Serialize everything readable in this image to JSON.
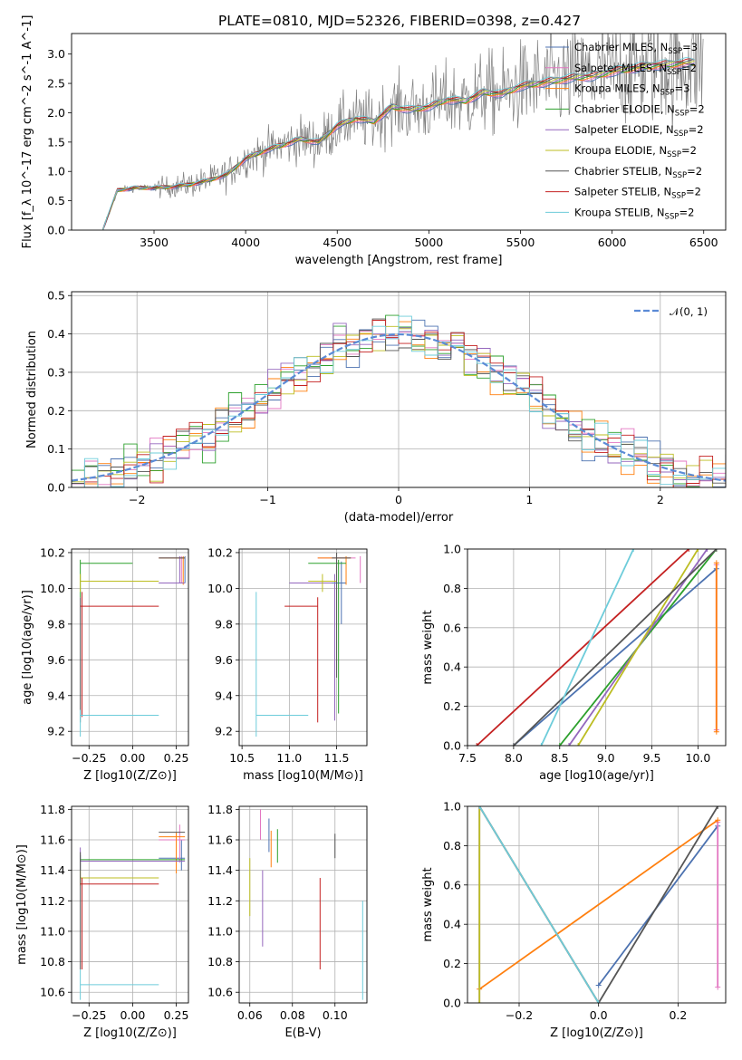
{
  "figure_title": "PLATE=0810, MJD=52326, FIBERID=0398, z=0.427",
  "colors": {
    "models": [
      "#4c72b0",
      "#e377c2",
      "#ff7f0e",
      "#2ca02c",
      "#9467bd",
      "#bcbd22",
      "#555555",
      "#c42121",
      "#6dccda"
    ],
    "data_spectrum": "#808080",
    "normal_curve": "#5b8bd6"
  },
  "chart_data": [
    {
      "type": "line",
      "panel": "spectrum",
      "xlabel": "wavelength [Angstrom, rest frame]",
      "ylabel": "Flux [f_λ 10^-17 erg cm^-2 s^-1 A^-1]",
      "xlim": [
        3050,
        6620
      ],
      "ylim": [
        0,
        3.35
      ],
      "xticks": [
        "3500",
        "4000",
        "4500",
        "5000",
        "5500",
        "6000",
        "6500"
      ],
      "yticks": [
        "0.0",
        "0.5",
        "1.0",
        "1.5",
        "2.0",
        "2.5",
        "3.0"
      ],
      "grid": false,
      "legend_position": "top-right",
      "legend": [
        "Chabrier MILES, N_SSP=3",
        "Salpeter MILES, N_SSP=2",
        "Kroupa MILES, N_SSP=3",
        "Chabrier ELODIE, N_SSP=2",
        "Salpeter ELODIE, N_SSP=2",
        "Kroupa ELODIE, N_SSP=2",
        "Chabrier STELIB, N_SSP=2",
        "Salpeter STELIB, N_SSP=2",
        "Kroupa STELIB, N_SSP=2"
      ],
      "model_x": [
        3220,
        3300,
        3400,
        3500,
        3600,
        3700,
        3800,
        3900,
        4000,
        4100,
        4200,
        4300,
        4400,
        4500,
        4600,
        4700,
        4800,
        4900,
        5000,
        5100,
        5200,
        5300,
        5400,
        5500,
        5600,
        5700,
        5800,
        5900,
        6000,
        6100,
        6200,
        6300,
        6400,
        6450
      ],
      "model_y": [
        0.0,
        0.68,
        0.72,
        0.72,
        0.74,
        0.78,
        0.85,
        0.95,
        1.22,
        1.35,
        1.45,
        1.55,
        1.5,
        1.78,
        1.9,
        1.85,
        2.1,
        2.05,
        2.1,
        2.22,
        2.2,
        2.35,
        2.32,
        2.45,
        2.5,
        2.55,
        2.6,
        2.62,
        2.7,
        2.75,
        2.8,
        2.82,
        2.85,
        2.85
      ],
      "data_noise": "spectrum shown as gray line, noise increasing toward red"
    },
    {
      "type": "line",
      "panel": "residual_histogram",
      "xlabel": "(data-model)/error",
      "ylabel": "Normed distribution",
      "xlim": [
        -2.5,
        2.5
      ],
      "ylim": [
        0,
        0.51
      ],
      "xticks": [
        "−2",
        "−1",
        "0",
        "1",
        "2"
      ],
      "yticks": [
        "0.0",
        "0.1",
        "0.2",
        "0.3",
        "0.4",
        "0.5"
      ],
      "grid": true,
      "legend_position": "top-right",
      "legend": [
        "𝒩(0, 1)"
      ],
      "bin_width": 0.1
    },
    {
      "type": "scatter",
      "panel": "age_vs_Z",
      "xlabel": "Z [log10(Z/Z⊙)]",
      "ylabel": "age  [log10(age/yr)]",
      "xlim": [
        -0.35,
        0.32
      ],
      "ylim": [
        9.12,
        10.22
      ],
      "xticks": [
        "−0.25",
        "0.00",
        "0.25"
      ],
      "yticks": [
        "9.2",
        "9.4",
        "9.6",
        "9.8",
        "10.0",
        "10.2"
      ],
      "grid": true
    },
    {
      "type": "scatter",
      "panel": "age_vs_mass",
      "xlabel": "mass [log10(M/M⊙)]",
      "ylabel": "",
      "xlim": [
        10.47,
        11.82
      ],
      "ylim": [
        9.12,
        10.22
      ],
      "xticks": [
        "10.5",
        "11.0",
        "11.5"
      ],
      "yticks": [
        "9.2",
        "9.4",
        "9.6",
        "9.8",
        "10.0",
        "10.2"
      ],
      "grid": true
    },
    {
      "type": "line",
      "panel": "mass_weight_vs_age",
      "xlabel": "age  [log10(age/yr)]",
      "ylabel": "mass weight",
      "xlim": [
        7.5,
        10.3
      ],
      "ylim": [
        0,
        1
      ],
      "xticks": [
        "7.5",
        "8.0",
        "8.5",
        "9.0",
        "9.5",
        "10.0"
      ],
      "yticks": [
        "0.0",
        "0.2",
        "0.4",
        "0.6",
        "0.8",
        "1.0"
      ],
      "grid": true,
      "series": [
        {
          "x": [
            8.0,
            10.2
          ],
          "y": [
            0.0,
            0.9
          ]
        },
        {
          "x": [
            10.2,
            10.2
          ],
          "y": [
            0.08,
            0.92
          ]
        },
        {
          "x": [
            10.2,
            10.2
          ],
          "y": [
            0.07,
            0.93
          ]
        },
        {
          "x": [
            8.5,
            10.2
          ],
          "y": [
            0.0,
            1.0
          ]
        },
        {
          "x": [
            8.6,
            10.1
          ],
          "y": [
            0.0,
            1.0
          ]
        },
        {
          "x": [
            8.7,
            10.0
          ],
          "y": [
            0.0,
            1.0
          ]
        },
        {
          "x": [
            8.0,
            10.2
          ],
          "y": [
            0.0,
            1.0
          ]
        },
        {
          "x": [
            7.6,
            9.9
          ],
          "y": [
            0.0,
            1.0
          ]
        },
        {
          "x": [
            8.3,
            9.3
          ],
          "y": [
            0.0,
            1.0
          ]
        }
      ]
    },
    {
      "type": "scatter",
      "panel": "mass_vs_Z",
      "xlabel": "Z [log10(Z/Z⊙)]",
      "ylabel": "mass [log10(M/M⊙)]",
      "xlim": [
        -0.35,
        0.32
      ],
      "ylim": [
        10.53,
        11.82
      ],
      "xticks": [
        "−0.25",
        "0.00",
        "0.25"
      ],
      "yticks": [
        "10.6",
        "10.8",
        "11.0",
        "11.2",
        "11.4",
        "11.6",
        "11.8"
      ],
      "grid": true
    },
    {
      "type": "scatter",
      "panel": "mass_vs_EBV",
      "xlabel": "E(B-V)",
      "ylabel": "",
      "xlim": [
        0.055,
        0.115
      ],
      "ylim": [
        10.53,
        11.82
      ],
      "xticks": [
        "0.06",
        "0.08",
        "0.10"
      ],
      "yticks": [
        "10.6",
        "10.8",
        "11.0",
        "11.2",
        "11.4",
        "11.6",
        "11.8"
      ],
      "grid": true
    },
    {
      "type": "line",
      "panel": "mass_weight_vs_Z",
      "xlabel": "Z [log10(Z/Z⊙)]",
      "ylabel": "mass weight",
      "xlim": [
        -0.33,
        0.32
      ],
      "ylim": [
        0,
        1
      ],
      "xticks": [
        "−0.2",
        "0.0",
        "0.2"
      ],
      "yticks": [
        "0.0",
        "0.2",
        "0.4",
        "0.6",
        "0.8",
        "1.0"
      ],
      "grid": true,
      "series": [
        {
          "x": [
            0.0,
            0.3
          ],
          "y": [
            0.09,
            0.9
          ]
        },
        {
          "x": [
            0.3,
            0.3
          ],
          "y": [
            0.08,
            0.92
          ]
        },
        {
          "x": [
            -0.3,
            0.3
          ],
          "y": [
            0.07,
            0.93
          ]
        },
        {
          "x": [
            -0.3,
            0.0
          ],
          "y": [
            1.0,
            0.0
          ]
        },
        {
          "x": [
            -0.3,
            -0.3
          ],
          "y": [
            0.0,
            1.0
          ]
        },
        {
          "x": [
            -0.3,
            -0.3
          ],
          "y": [
            0.0,
            1.0
          ]
        },
        {
          "x": [
            0.0,
            0.3
          ],
          "y": [
            0.0,
            1.0
          ]
        },
        {
          "x": [
            -0.3,
            0.0
          ],
          "y": [
            1.0,
            0.0
          ]
        },
        {
          "x": [
            -0.3,
            0.0
          ],
          "y": [
            1.0,
            0.0
          ]
        }
      ]
    }
  ]
}
